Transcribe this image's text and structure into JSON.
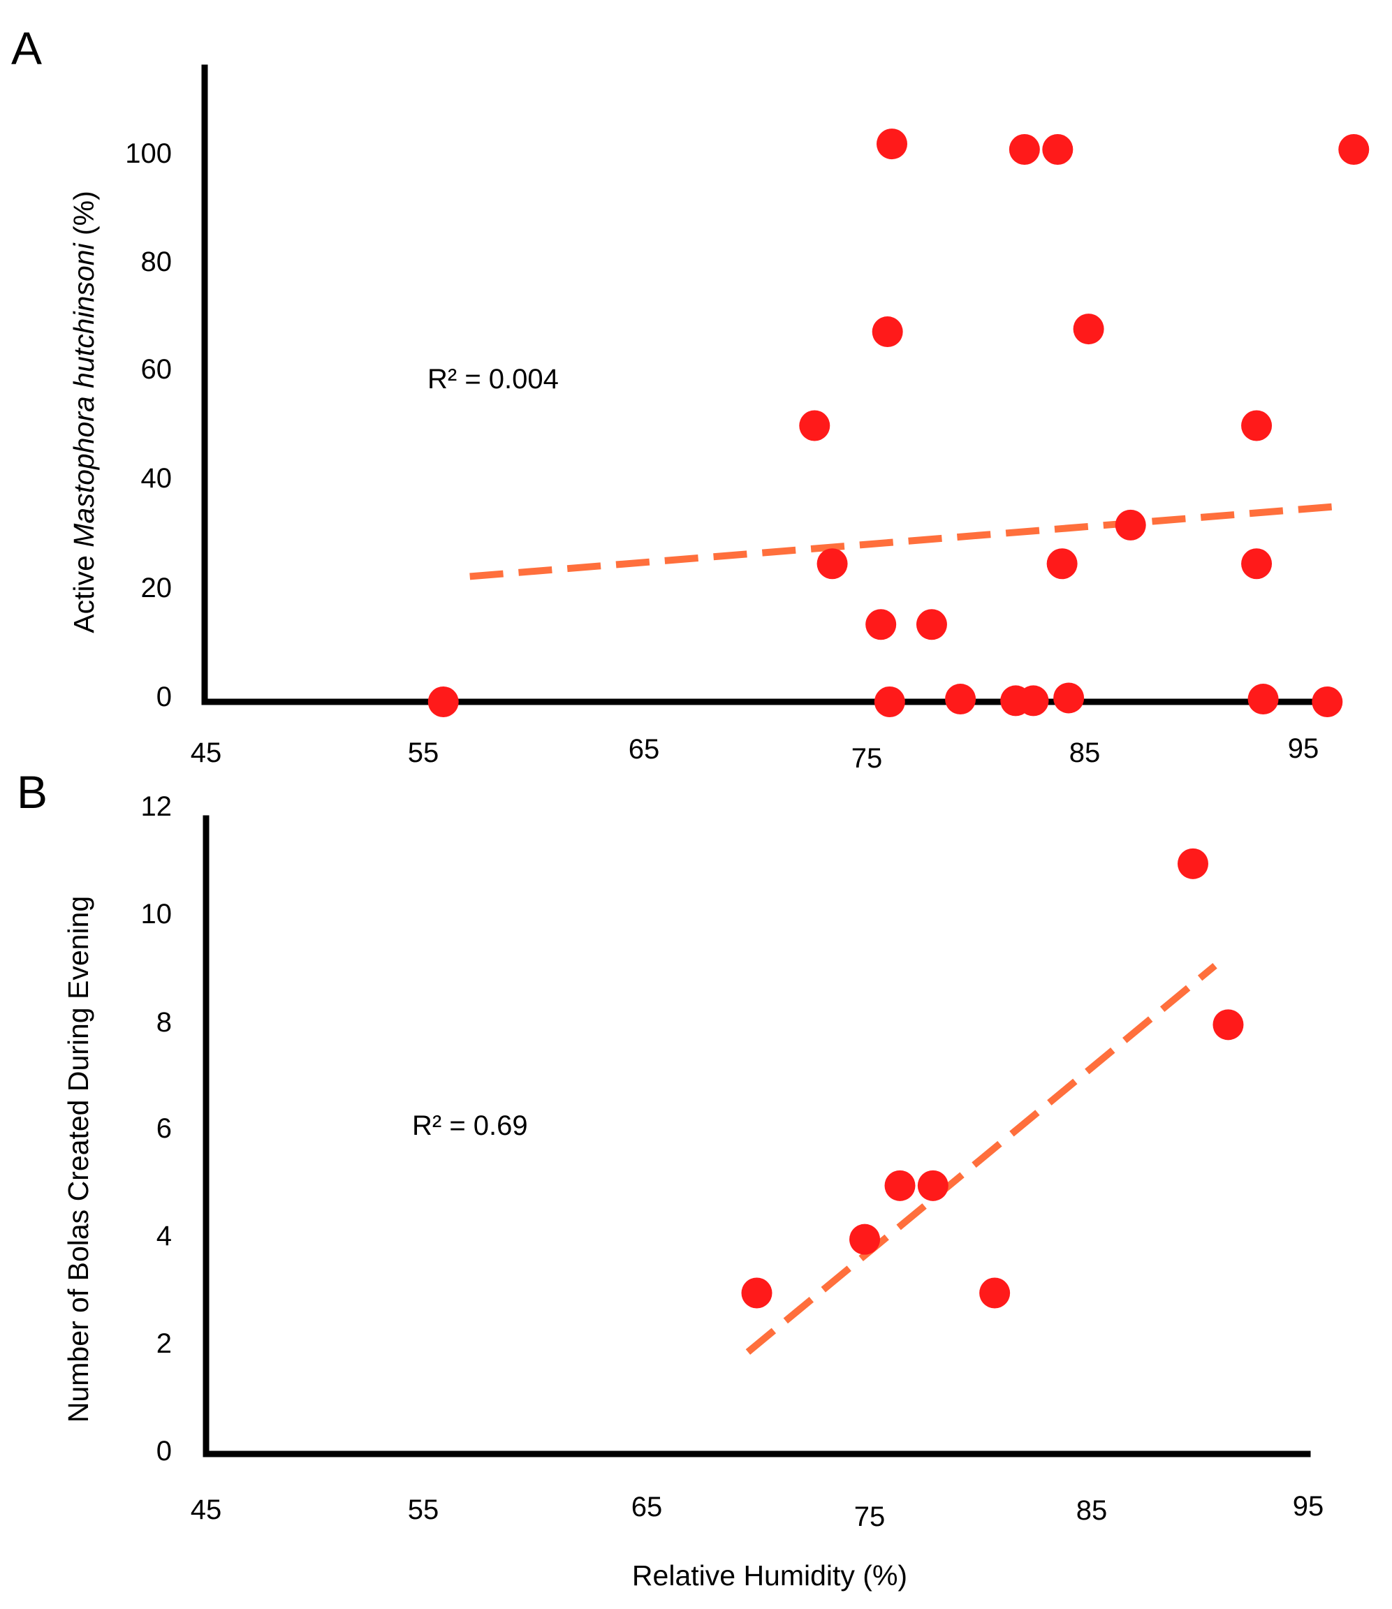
{
  "colors": {
    "points": "#ff1a1a",
    "trendline": "#ff6f3c",
    "axes": "#000000"
  },
  "shared_xlabel": "Relative Humidity (%)",
  "chart_data": [
    {
      "type": "scatter",
      "panel_label": "A",
      "title": "",
      "xlabel": "",
      "ylabel": {
        "prefix": "Active ",
        "italic": "Mastophora hutchinsoni",
        "suffix": "  (%)"
      },
      "xlim": [
        45,
        95
      ],
      "ylim": [
        0,
        100
      ],
      "x_ticks": [
        "45",
        "55",
        "65",
        "75",
        "85",
        "95"
      ],
      "y_ticks": [
        "0",
        "20",
        "40",
        "60",
        "80",
        "100"
      ],
      "annotation": "R² = 0.004",
      "grid": false,
      "legend": "none",
      "points": [
        {
          "x": 55.8,
          "y": 0
        },
        {
          "x": 72.6,
          "y": 50
        },
        {
          "x": 73.4,
          "y": 25
        },
        {
          "x": 75.6,
          "y": 14
        },
        {
          "x": 75.9,
          "y": 67
        },
        {
          "x": 76.0,
          "y": 0
        },
        {
          "x": 76.1,
          "y": 101
        },
        {
          "x": 77.9,
          "y": 14
        },
        {
          "x": 79.2,
          "y": 0.5
        },
        {
          "x": 81.7,
          "y": 0.2
        },
        {
          "x": 82.1,
          "y": 100
        },
        {
          "x": 82.5,
          "y": 0.2
        },
        {
          "x": 83.6,
          "y": 100
        },
        {
          "x": 83.8,
          "y": 25
        },
        {
          "x": 84.1,
          "y": 0.7
        },
        {
          "x": 85.0,
          "y": 67.5
        },
        {
          "x": 86.9,
          "y": 32
        },
        {
          "x": 92.6,
          "y": 50
        },
        {
          "x": 92.6,
          "y": 25
        },
        {
          "x": 92.9,
          "y": 0.5
        },
        {
          "x": 95.8,
          "y": 0
        },
        {
          "x": 97.0,
          "y": 100
        }
      ],
      "trendline": {
        "x": [
          57,
          96
        ],
        "y": [
          22.7,
          35.3
        ]
      }
    },
    {
      "type": "scatter",
      "panel_label": "B",
      "title": "",
      "xlabel": "Relative Humidity (%)",
      "ylabel": "Number of Bolas Created During Evening",
      "xlim": [
        45,
        95
      ],
      "ylim": [
        0,
        12
      ],
      "x_ticks": [
        "45",
        "55",
        "65",
        "75",
        "85",
        "95"
      ],
      "y_ticks": [
        "0",
        "2",
        "4",
        "6",
        "8",
        "10",
        "12"
      ],
      "annotation": "R² = 0.69",
      "grid": false,
      "legend": "none",
      "points": [
        {
          "x": 70.0,
          "y": 3
        },
        {
          "x": 74.9,
          "y": 4
        },
        {
          "x": 76.5,
          "y": 5
        },
        {
          "x": 78.0,
          "y": 5
        },
        {
          "x": 80.8,
          "y": 3
        },
        {
          "x": 89.8,
          "y": 11
        },
        {
          "x": 91.4,
          "y": 8
        }
      ],
      "trendline": {
        "x": [
          69.6,
          90.8
        ],
        "y": [
          1.9,
          9.1
        ]
      }
    }
  ]
}
